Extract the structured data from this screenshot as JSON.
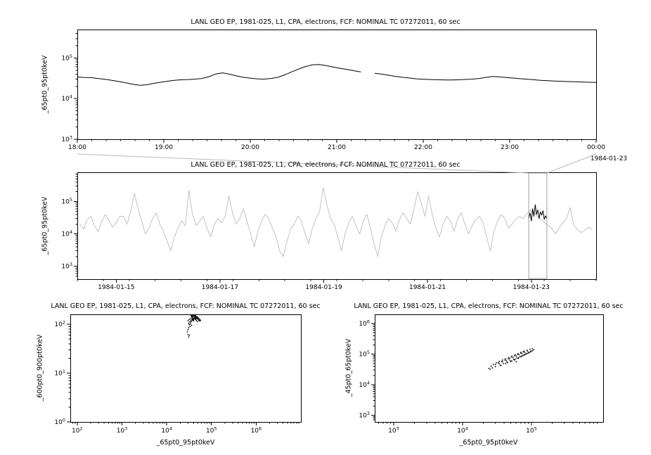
{
  "page": {
    "background": "#ffffff"
  },
  "colors": {
    "frame": "#000000",
    "zoom_series": "#000000",
    "overview_series": "#c3c3c3",
    "highlight_series": "#000000",
    "selection_box": "#9e9e9e",
    "connector": "#b9b9b9"
  },
  "chart_data": [
    {
      "id": "zoom",
      "type": "line",
      "title": "LANL GEO EP, 1981-025, L1, CPA, electrons, FCF: NOMINAL TC 07272011, 60 sec",
      "ylabel": "_65pt0_95pt0keV",
      "x_scale": "linear",
      "y_scale": "log",
      "x_range": [
        18,
        24
      ],
      "y_range": [
        1000,
        500000
      ],
      "x_ticks": [
        {
          "v": 18,
          "label": "18:00"
        },
        {
          "v": 19,
          "label": "19:00"
        },
        {
          "v": 20,
          "label": "20:00"
        },
        {
          "v": 21,
          "label": "21:00"
        },
        {
          "v": 22,
          "label": "22:00"
        },
        {
          "v": 23,
          "label": "23:00"
        },
        {
          "v": 24,
          "label": "00:00"
        }
      ],
      "x_minor_step": 0.16667,
      "y_tick_exps": [
        3,
        4,
        5
      ],
      "end_date_label": "1984-01-23",
      "series_color": "#000000",
      "series": {
        "x_start": 18.0,
        "x_step": 0.08,
        "values": [
          34000,
          33200,
          32800,
          31200,
          29800,
          28200,
          26300,
          24400,
          22600,
          21200,
          21800,
          23600,
          25200,
          26800,
          28200,
          29100,
          29400,
          30100,
          31200,
          34500,
          40200,
          43000,
          39800,
          36200,
          33400,
          31900,
          30600,
          30100,
          31300,
          33500,
          38500,
          45500,
          53500,
          61500,
          68000,
          69000,
          64500,
          59500,
          55500,
          52000,
          48500,
          45000,
          null,
          42000,
          40000,
          37500,
          35200,
          33400,
          32100,
          30600,
          30000,
          29400,
          29100,
          28900,
          28600,
          29000,
          29600,
          30200,
          31100,
          33200,
          35000,
          34400,
          33100,
          32000,
          30900,
          30000,
          29100,
          28200,
          27600,
          27100,
          26600,
          26200,
          25900,
          25600,
          25200,
          25000
        ]
      }
    },
    {
      "id": "overview",
      "type": "line",
      "title": "LANL GEO EP, 1981-025, L1, CPA, electrons, FCF: NOMINAL TC 07272011, 60 sec",
      "ylabel": "_65pt0_95pt0keV",
      "x_scale": "linear",
      "y_scale": "log",
      "x_range": [
        14.25,
        24.25
      ],
      "y_range": [
        400,
        800000
      ],
      "x_ticks": [
        {
          "v": 15,
          "label": "1984-01-15"
        },
        {
          "v": 17,
          "label": "1984-01-17"
        },
        {
          "v": 19,
          "label": "1984-01-19"
        },
        {
          "v": 21,
          "label": "1984-01-21"
        },
        {
          "v": 23,
          "label": "1984-01-23"
        }
      ],
      "x_minor_step": 0.5,
      "y_tick_exps": [
        3,
        4,
        5
      ],
      "series_color": "#c3c3c3",
      "series": {
        "x_start": 14.3,
        "x_step": 0.07,
        "values": [
          20000,
          14000,
          28000,
          35000,
          18000,
          12000,
          24000,
          40000,
          26000,
          16000,
          22000,
          35000,
          35000,
          20000,
          50000,
          180000,
          60000,
          25000,
          10000,
          15000,
          30000,
          45000,
          20000,
          12000,
          6000,
          3000,
          8000,
          15000,
          25000,
          18000,
          220000,
          40000,
          18000,
          25000,
          35000,
          15000,
          8000,
          20000,
          30000,
          22000,
          35000,
          150000,
          45000,
          20000,
          30000,
          60000,
          25000,
          10000,
          4000,
          12000,
          25000,
          40000,
          30000,
          15000,
          8000,
          3000,
          2000,
          6000,
          14000,
          20000,
          35000,
          25000,
          10000,
          5000,
          15000,
          30000,
          50000,
          270000,
          80000,
          30000,
          20000,
          8000,
          3000,
          10000,
          22000,
          35000,
          18000,
          10000,
          25000,
          40000,
          15000,
          5000,
          2000,
          8000,
          18000,
          30000,
          22000,
          12000,
          28000,
          45000,
          30000,
          20000,
          60000,
          200000,
          90000,
          35000,
          150000,
          40000,
          15000,
          8000,
          20000,
          35000,
          25000,
          12000,
          30000,
          45000,
          20000,
          10000,
          18000,
          28000,
          35000,
          22000,
          8000,
          3000,
          12000,
          25000,
          40000,
          30000,
          15000,
          20000,
          28000,
          35000,
          30000,
          40000,
          55000,
          45000,
          35000,
          28000,
          22000,
          18000,
          14000,
          10000,
          16000,
          22000,
          30000,
          65000,
          18000,
          14000,
          11000,
          13000,
          16000,
          14000
        ]
      },
      "highlight": {
        "color": "#000000",
        "x_start": 22.95,
        "x_step": 0.025,
        "values": [
          30000,
          45000,
          25000,
          60000,
          35000,
          80000,
          40000,
          55000,
          30000,
          48000,
          38000,
          52000,
          28000,
          36000,
          30000
        ]
      },
      "selection": {
        "x1": 22.95,
        "x2": 23.3,
        "color": "#9e9e9e"
      }
    },
    {
      "id": "scatter_left",
      "type": "scatter",
      "title": "LANL GEO EP, 1981-025, L1, CPA, electrons, FCF: NOMINAL TC 07272011, 60 sec",
      "xlabel": "_65pt0_95pt0keV",
      "ylabel": "_600pt0_900pt0keV",
      "x_scale": "log",
      "y_scale": "log",
      "x_range": [
        70,
        10000000
      ],
      "y_range": [
        1,
        160
      ],
      "x_tick_exps": [
        2,
        3,
        4,
        5,
        6
      ],
      "y_tick_exps": [
        0,
        1,
        2
      ],
      "point_color": "#000000",
      "points": [
        [
          30000,
          118
        ],
        [
          32000,
          125
        ],
        [
          34000,
          130
        ],
        [
          36000,
          140
        ],
        [
          38000,
          135
        ],
        [
          40000,
          128
        ],
        [
          42000,
          145
        ],
        [
          44000,
          150
        ],
        [
          46000,
          138
        ],
        [
          48000,
          130
        ],
        [
          33000,
          112
        ],
        [
          35000,
          120
        ],
        [
          37000,
          126
        ],
        [
          39000,
          133
        ],
        [
          41000,
          140
        ],
        [
          43000,
          148
        ],
        [
          45000,
          142
        ],
        [
          47000,
          135
        ],
        [
          50000,
          128
        ],
        [
          52000,
          122
        ],
        [
          31000,
          105
        ],
        [
          34000,
          110
        ],
        [
          36000,
          115
        ],
        [
          38000,
          122
        ],
        [
          40000,
          118
        ],
        [
          42000,
          130
        ],
        [
          44000,
          126
        ],
        [
          46000,
          120
        ],
        [
          49000,
          115
        ],
        [
          54000,
          118
        ],
        [
          35000,
          150
        ],
        [
          37000,
          152
        ],
        [
          39000,
          148
        ],
        [
          41000,
          155
        ],
        [
          43000,
          152
        ],
        [
          45000,
          146
        ],
        [
          40000,
          150
        ],
        [
          38000,
          144
        ],
        [
          36000,
          148
        ],
        [
          42000,
          140
        ],
        [
          32000,
          98
        ],
        [
          34000,
          102
        ],
        [
          36000,
          95
        ],
        [
          33000,
          90
        ],
        [
          31000,
          85
        ],
        [
          30000,
          78
        ],
        [
          29000,
          70
        ],
        [
          30000,
          62
        ],
        [
          31000,
          55
        ],
        [
          32000,
          60
        ],
        [
          48000,
          142
        ],
        [
          50000,
          138
        ],
        [
          52000,
          132
        ],
        [
          55000,
          126
        ],
        [
          57000,
          120
        ],
        [
          45000,
          132
        ],
        [
          43000,
          136
        ],
        [
          41000,
          129
        ],
        [
          39000,
          124
        ],
        [
          37000,
          131
        ]
      ]
    },
    {
      "id": "scatter_right",
      "type": "scatter",
      "title": "LANL GEO EP, 1981-025, L1, CPA, electrons, FCF: NOMINAL TC 07272011, 60 sec",
      "xlabel": "_65pt0_95pt0keV",
      "ylabel": "_45pt0_65pt0keV",
      "x_scale": "log",
      "y_scale": "log",
      "x_range": [
        530,
        1100000
      ],
      "y_range": [
        600,
        2000000
      ],
      "x_tick_exps": [
        3,
        4,
        5
      ],
      "y_tick_exps": [
        3,
        4,
        5,
        6
      ],
      "point_color": "#000000",
      "points": [
        [
          24000,
          34000
        ],
        [
          26000,
          40000
        ],
        [
          28000,
          46000
        ],
        [
          31000,
          52000
        ],
        [
          34000,
          58000
        ],
        [
          38000,
          64000
        ],
        [
          42000,
          70000
        ],
        [
          47000,
          78000
        ],
        [
          52000,
          86000
        ],
        [
          58000,
          95000
        ],
        [
          64000,
          104000
        ],
        [
          70000,
          114000
        ],
        [
          78000,
          124000
        ],
        [
          86000,
          134000
        ],
        [
          95000,
          144000
        ],
        [
          103000,
          150000
        ],
        [
          108000,
          140000
        ],
        [
          104000,
          128000
        ],
        [
          98000,
          118000
        ],
        [
          90000,
          108000
        ],
        [
          82000,
          99000
        ],
        [
          75000,
          90000
        ],
        [
          68000,
          82000
        ],
        [
          61000,
          75000
        ],
        [
          55000,
          68000
        ],
        [
          49000,
          61000
        ],
        [
          44000,
          55000
        ],
        [
          39000,
          49000
        ],
        [
          35000,
          44000
        ],
        [
          30000,
          39000
        ],
        [
          27000,
          35000
        ],
        [
          25000,
          32000
        ],
        [
          34000,
          50000
        ],
        [
          38000,
          56000
        ],
        [
          43000,
          62000
        ],
        [
          48000,
          70000
        ],
        [
          54000,
          78000
        ],
        [
          60000,
          86000
        ],
        [
          66000,
          95000
        ],
        [
          73000,
          104000
        ],
        [
          80000,
          114000
        ],
        [
          88000,
          124000
        ],
        [
          45000,
          52000
        ],
        [
          52000,
          60000
        ],
        [
          58000,
          68000
        ],
        [
          65000,
          76000
        ],
        [
          72000,
          86000
        ],
        [
          79000,
          96000
        ],
        [
          86000,
          106000
        ],
        [
          93000,
          116000
        ],
        [
          99000,
          126000
        ],
        [
          60000,
          56000
        ],
        [
          36000,
          42000
        ],
        [
          42000,
          48000
        ],
        [
          50000,
          56000
        ],
        [
          57000,
          64000
        ],
        [
          64000,
          72000
        ],
        [
          71000,
          82000
        ],
        [
          78000,
          92000
        ],
        [
          85000,
          102000
        ],
        [
          92000,
          112000
        ],
        [
          98000,
          122000
        ],
        [
          30000,
          46000
        ],
        [
          33000,
          52000
        ],
        [
          37000,
          58000
        ],
        [
          41000,
          64000
        ],
        [
          46000,
          71000
        ],
        [
          51000,
          79000
        ],
        [
          57000,
          88000
        ],
        [
          63000,
          98000
        ],
        [
          70000,
          108000
        ],
        [
          76000,
          118000
        ]
      ]
    }
  ]
}
